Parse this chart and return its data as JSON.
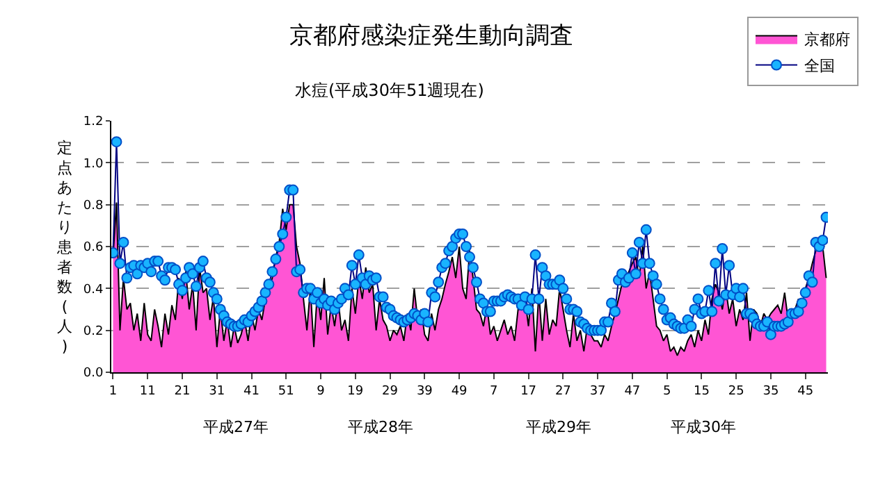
{
  "chart_data": {
    "type": "area",
    "title": "京都府感染症発生動向調査",
    "subtitle": "水痘(平成30年51週現在)",
    "ylabel": "定点あたり患者数(人)",
    "categories": [
      "1",
      null,
      null,
      null,
      null,
      null,
      null,
      null,
      null,
      null,
      "11",
      null,
      null,
      null,
      null,
      null,
      null,
      null,
      null,
      null,
      "21",
      null,
      null,
      null,
      null,
      null,
      null,
      null,
      null,
      null,
      "31",
      null,
      null,
      null,
      null,
      null,
      null,
      null,
      null,
      null,
      "41",
      null,
      null,
      null,
      null,
      null,
      null,
      null,
      null,
      null,
      "51",
      null,
      null,
      null,
      null,
      null,
      null,
      null,
      null,
      null,
      "9",
      null,
      null,
      null,
      null,
      null,
      null,
      null,
      null,
      null,
      "19",
      null,
      null,
      null,
      null,
      null,
      null,
      null,
      null,
      null,
      "29",
      null,
      null,
      null,
      null,
      null,
      null,
      null,
      null,
      null,
      "39",
      null,
      null,
      null,
      null,
      null,
      null,
      null,
      null,
      null,
      "49",
      null,
      null,
      null,
      null,
      null,
      null,
      null,
      null,
      null,
      "7",
      null,
      null,
      null,
      null,
      null,
      null,
      null,
      null,
      null,
      "17",
      null,
      null,
      null,
      null,
      null,
      null,
      null,
      null,
      null,
      "27",
      null,
      null,
      null,
      null,
      null,
      null,
      null,
      null,
      null,
      "37",
      null,
      null,
      null,
      null,
      null,
      null,
      null,
      null,
      null,
      "47",
      null,
      null,
      null,
      null,
      null,
      null,
      null,
      null,
      null,
      "5",
      null,
      null,
      null,
      null,
      null,
      null,
      null,
      null,
      null,
      "15",
      null,
      null,
      null,
      null,
      null,
      null,
      null,
      null,
      null,
      "25",
      null,
      null,
      null,
      null,
      null,
      null,
      null,
      null,
      null,
      "35",
      null,
      null,
      null,
      null,
      null,
      null,
      null,
      null,
      null,
      "45",
      null,
      null,
      null,
      null,
      null,
      null
    ],
    "series": [
      {
        "name": "京都府",
        "color": "#ff55d4",
        "values": [
          0.55,
          0.81,
          0.2,
          0.45,
          0.3,
          0.33,
          0.2,
          0.28,
          0.15,
          0.33,
          0.18,
          0.15,
          0.3,
          0.22,
          0.12,
          0.28,
          0.18,
          0.32,
          0.25,
          0.45,
          0.35,
          0.48,
          0.3,
          0.42,
          0.2,
          0.5,
          0.38,
          0.4,
          0.25,
          0.36,
          0.12,
          0.3,
          0.15,
          0.25,
          0.12,
          0.22,
          0.14,
          0.18,
          0.25,
          0.15,
          0.28,
          0.2,
          0.3,
          0.25,
          0.35,
          0.4,
          0.45,
          0.55,
          0.62,
          0.78,
          0.68,
          0.8,
          0.8,
          0.6,
          0.52,
          0.35,
          0.2,
          0.4,
          0.12,
          0.38,
          0.25,
          0.45,
          0.18,
          0.32,
          0.22,
          0.35,
          0.2,
          0.25,
          0.15,
          0.4,
          0.28,
          0.45,
          0.35,
          0.5,
          0.38,
          0.42,
          0.2,
          0.35,
          0.25,
          0.22,
          0.15,
          0.2,
          0.18,
          0.22,
          0.15,
          0.28,
          0.2,
          0.4,
          0.25,
          0.3,
          0.18,
          0.15,
          0.28,
          0.2,
          0.3,
          0.35,
          0.42,
          0.48,
          0.55,
          0.45,
          0.6,
          0.4,
          0.35,
          0.58,
          0.45,
          0.3,
          0.28,
          0.22,
          0.32,
          0.18,
          0.22,
          0.15,
          0.2,
          0.25,
          0.18,
          0.22,
          0.15,
          0.3,
          0.3,
          0.35,
          0.22,
          0.4,
          0.1,
          0.38,
          0.15,
          0.35,
          0.18,
          0.25,
          0.22,
          0.4,
          0.3,
          0.2,
          0.12,
          0.28,
          0.15,
          0.2,
          0.1,
          0.22,
          0.18,
          0.15,
          0.15,
          0.12,
          0.18,
          0.15,
          0.22,
          0.28,
          0.35,
          0.42,
          0.45,
          0.48,
          0.52,
          0.55,
          0.45,
          0.6,
          0.4,
          0.48,
          0.35,
          0.22,
          0.2,
          0.15,
          0.18,
          0.1,
          0.12,
          0.08,
          0.12,
          0.1,
          0.15,
          0.18,
          0.12,
          0.2,
          0.15,
          0.25,
          0.18,
          0.35,
          0.42,
          0.38,
          0.3,
          0.4,
          0.28,
          0.35,
          0.22,
          0.3,
          0.25,
          0.38,
          0.15,
          0.3,
          0.28,
          0.22,
          0.28,
          0.25,
          0.28,
          0.3,
          0.32,
          0.28,
          0.38,
          0.25,
          0.3,
          0.3,
          0.35,
          0.32,
          0.4,
          0.45,
          0.52,
          0.58,
          0.6,
          0.6,
          0.45
        ]
      },
      {
        "name": "全国",
        "type": "line",
        "marker": "circle",
        "color": "#19b4ff",
        "values": [
          0.57,
          1.1,
          0.52,
          0.62,
          0.45,
          0.5,
          0.51,
          0.47,
          0.51,
          0.5,
          0.52,
          0.48,
          0.53,
          0.53,
          0.46,
          0.44,
          0.5,
          0.5,
          0.49,
          0.42,
          0.39,
          0.45,
          0.5,
          0.47,
          0.41,
          0.5,
          0.53,
          0.45,
          0.43,
          0.38,
          0.35,
          0.3,
          0.27,
          0.24,
          0.23,
          0.22,
          0.22,
          0.23,
          0.25,
          0.24,
          0.27,
          0.29,
          0.31,
          0.34,
          0.38,
          0.42,
          0.48,
          0.54,
          0.6,
          0.66,
          0.74,
          0.87,
          0.87,
          0.48,
          0.49,
          0.38,
          0.4,
          0.4,
          0.35,
          0.38,
          0.33,
          0.35,
          0.32,
          0.34,
          0.3,
          0.33,
          0.35,
          0.4,
          0.37,
          0.51,
          0.42,
          0.56,
          0.45,
          0.42,
          0.46,
          0.44,
          0.45,
          0.36,
          0.36,
          0.31,
          0.3,
          0.27,
          0.26,
          0.25,
          0.24,
          0.25,
          0.26,
          0.28,
          0.27,
          0.25,
          0.28,
          0.24,
          0.38,
          0.36,
          0.43,
          0.5,
          0.52,
          0.58,
          0.6,
          0.64,
          0.66,
          0.66,
          0.6,
          0.55,
          0.5,
          0.43,
          0.35,
          0.33,
          0.29,
          0.29,
          0.34,
          0.34,
          0.34,
          0.36,
          0.37,
          0.36,
          0.35,
          0.35,
          0.32,
          0.36,
          0.3,
          0.35,
          0.56,
          0.35,
          0.5,
          0.46,
          0.42,
          0.42,
          0.42,
          0.44,
          0.4,
          0.35,
          0.3,
          0.3,
          0.29,
          0.24,
          0.23,
          0.21,
          0.2,
          0.2,
          0.2,
          0.2,
          0.24,
          0.24,
          0.33,
          0.29,
          0.44,
          0.47,
          0.43,
          0.45,
          0.57,
          0.47,
          0.62,
          0.52,
          0.68,
          0.52,
          0.46,
          0.42,
          0.35,
          0.3,
          0.25,
          0.26,
          0.23,
          0.22,
          0.21,
          0.21,
          0.25,
          0.22,
          0.3,
          0.35,
          0.28,
          0.29,
          0.39,
          0.29,
          0.52,
          0.34,
          0.59,
          0.37,
          0.51,
          0.37,
          0.4,
          0.36,
          0.4,
          0.28,
          0.28,
          0.26,
          0.23,
          0.22,
          0.22,
          0.24,
          0.18,
          0.22,
          0.22,
          0.22,
          0.23,
          0.24,
          0.28,
          0.28,
          0.29,
          0.33,
          0.38,
          0.46,
          0.43,
          0.62,
          0.6,
          0.63,
          0.74
        ]
      }
    ],
    "ylim": [
      0,
      1.2
    ],
    "yticks": [
      {
        "value": 0,
        "label": "0.0"
      },
      {
        "value": 0.2,
        "label": "0.2"
      },
      {
        "value": 0.4,
        "label": "0.4"
      },
      {
        "value": 0.6,
        "label": "0.6"
      },
      {
        "value": 0.8,
        "label": "0.8"
      },
      {
        "value": 1.0,
        "label": "1.0"
      },
      {
        "value": 1.2,
        "label": "1.2"
      }
    ],
    "grid": "y",
    "legend": "top right",
    "annotations": [
      "平成27年",
      "平成28年",
      "平成29年",
      "平成30年"
    ]
  }
}
